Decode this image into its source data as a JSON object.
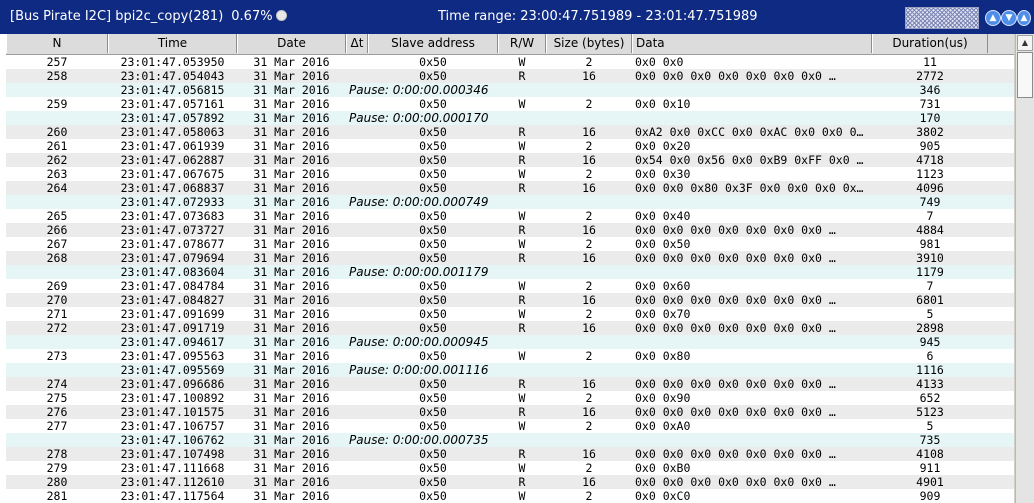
{
  "window": {
    "title": "[Bus Pirate I2C] bpi2c_copy(281)",
    "percent": "0.67%",
    "time_range": "Time range: 23:00:47.751989 - 23:01:47.751989",
    "nav_icons": [
      "up-arrow-icon",
      "down-arrow-icon"
    ]
  },
  "columns": [
    {
      "key": "n",
      "label": "N"
    },
    {
      "key": "time",
      "label": "Time"
    },
    {
      "key": "date",
      "label": "Date"
    },
    {
      "key": "dt",
      "label": "Δt"
    },
    {
      "key": "slave",
      "label": "Slave address"
    },
    {
      "key": "rw",
      "label": "R/W"
    },
    {
      "key": "size",
      "label": "Size (bytes)"
    },
    {
      "key": "data",
      "label": "Data"
    },
    {
      "key": "duration",
      "label": "Duration(us)"
    }
  ],
  "rows": [
    {
      "type": "tx",
      "n": "257",
      "time": "23:01:47.053950",
      "date": "31 Mar 2016",
      "slave": "0x50",
      "rw": "W",
      "size": "2",
      "data": "0x0 0x0",
      "duration": "11"
    },
    {
      "type": "tx",
      "n": "258",
      "time": "23:01:47.054043",
      "date": "31 Mar 2016",
      "slave": "0x50",
      "rw": "R",
      "size": "16",
      "data": "0x0 0x0 0x0 0x0 0x0 0x0 0x0 …",
      "duration": "2772"
    },
    {
      "type": "pause",
      "time": "23:01:47.056815",
      "date": "31 Mar 2016",
      "pause": "Pause: 0:00:00.000346",
      "duration": "346"
    },
    {
      "type": "tx",
      "n": "259",
      "time": "23:01:47.057161",
      "date": "31 Mar 2016",
      "slave": "0x50",
      "rw": "W",
      "size": "2",
      "data": "0x0 0x10",
      "duration": "731"
    },
    {
      "type": "pause",
      "time": "23:01:47.057892",
      "date": "31 Mar 2016",
      "pause": "Pause: 0:00:00.000170",
      "duration": "170"
    },
    {
      "type": "tx",
      "n": "260",
      "time": "23:01:47.058063",
      "date": "31 Mar 2016",
      "slave": "0x50",
      "rw": "R",
      "size": "16",
      "data": "0xA2 0x0 0xCC 0x0 0xAC 0x0 0x0 0…",
      "duration": "3802"
    },
    {
      "type": "tx",
      "n": "261",
      "time": "23:01:47.061939",
      "date": "31 Mar 2016",
      "slave": "0x50",
      "rw": "W",
      "size": "2",
      "data": "0x0 0x20",
      "duration": "905"
    },
    {
      "type": "tx",
      "n": "262",
      "time": "23:01:47.062887",
      "date": "31 Mar 2016",
      "slave": "0x50",
      "rw": "R",
      "size": "16",
      "data": "0x54 0x0 0x56 0x0 0xB9 0xFF 0x0 …",
      "duration": "4718"
    },
    {
      "type": "tx",
      "n": "263",
      "time": "23:01:47.067675",
      "date": "31 Mar 2016",
      "slave": "0x50",
      "rw": "W",
      "size": "2",
      "data": "0x0 0x30",
      "duration": "1123"
    },
    {
      "type": "tx",
      "n": "264",
      "time": "23:01:47.068837",
      "date": "31 Mar 2016",
      "slave": "0x50",
      "rw": "R",
      "size": "16",
      "data": "0x0 0x0 0x80 0x3F 0x0 0x0 0x0 0x…",
      "duration": "4096"
    },
    {
      "type": "pause",
      "time": "23:01:47.072933",
      "date": "31 Mar 2016",
      "pause": "Pause: 0:00:00.000749",
      "duration": "749"
    },
    {
      "type": "tx",
      "n": "265",
      "time": "23:01:47.073683",
      "date": "31 Mar 2016",
      "slave": "0x50",
      "rw": "W",
      "size": "2",
      "data": "0x0 0x40",
      "duration": "7"
    },
    {
      "type": "tx",
      "n": "266",
      "time": "23:01:47.073727",
      "date": "31 Mar 2016",
      "slave": "0x50",
      "rw": "R",
      "size": "16",
      "data": "0x0 0x0 0x0 0x0 0x0 0x0 0x0 …",
      "duration": "4884"
    },
    {
      "type": "tx",
      "n": "267",
      "time": "23:01:47.078677",
      "date": "31 Mar 2016",
      "slave": "0x50",
      "rw": "W",
      "size": "2",
      "data": "0x0 0x50",
      "duration": "981"
    },
    {
      "type": "tx",
      "n": "268",
      "time": "23:01:47.079694",
      "date": "31 Mar 2016",
      "slave": "0x50",
      "rw": "R",
      "size": "16",
      "data": "0x0 0x0 0x0 0x0 0x0 0x0 0x0 …",
      "duration": "3910"
    },
    {
      "type": "pause",
      "time": "23:01:47.083604",
      "date": "31 Mar 2016",
      "pause": "Pause: 0:00:00.001179",
      "duration": "1179"
    },
    {
      "type": "tx",
      "n": "269",
      "time": "23:01:47.084784",
      "date": "31 Mar 2016",
      "slave": "0x50",
      "rw": "W",
      "size": "2",
      "data": "0x0 0x60",
      "duration": "7"
    },
    {
      "type": "tx",
      "n": "270",
      "time": "23:01:47.084827",
      "date": "31 Mar 2016",
      "slave": "0x50",
      "rw": "R",
      "size": "16",
      "data": "0x0 0x0 0x0 0x0 0x0 0x0 0x0 …",
      "duration": "6801"
    },
    {
      "type": "tx",
      "n": "271",
      "time": "23:01:47.091699",
      "date": "31 Mar 2016",
      "slave": "0x50",
      "rw": "W",
      "size": "2",
      "data": "0x0 0x70",
      "duration": "5"
    },
    {
      "type": "tx",
      "n": "272",
      "time": "23:01:47.091719",
      "date": "31 Mar 2016",
      "slave": "0x50",
      "rw": "R",
      "size": "16",
      "data": "0x0 0x0 0x0 0x0 0x0 0x0 0x0 …",
      "duration": "2898"
    },
    {
      "type": "pause",
      "time": "23:01:47.094617",
      "date": "31 Mar 2016",
      "pause": "Pause: 0:00:00.000945",
      "duration": "945"
    },
    {
      "type": "tx",
      "n": "273",
      "time": "23:01:47.095563",
      "date": "31 Mar 2016",
      "slave": "0x50",
      "rw": "W",
      "size": "2",
      "data": "0x0 0x80",
      "duration": "6"
    },
    {
      "type": "pause",
      "time": "23:01:47.095569",
      "date": "31 Mar 2016",
      "pause": "Pause: 0:00:00.001116",
      "duration": "1116"
    },
    {
      "type": "tx",
      "n": "274",
      "time": "23:01:47.096686",
      "date": "31 Mar 2016",
      "slave": "0x50",
      "rw": "R",
      "size": "16",
      "data": "0x0 0x0 0x0 0x0 0x0 0x0 0x0 …",
      "duration": "4133"
    },
    {
      "type": "tx",
      "n": "275",
      "time": "23:01:47.100892",
      "date": "31 Mar 2016",
      "slave": "0x50",
      "rw": "W",
      "size": "2",
      "data": "0x0 0x90",
      "duration": "652"
    },
    {
      "type": "tx",
      "n": "276",
      "time": "23:01:47.101575",
      "date": "31 Mar 2016",
      "slave": "0x50",
      "rw": "R",
      "size": "16",
      "data": "0x0 0x0 0x0 0x0 0x0 0x0 0x0 …",
      "duration": "5123"
    },
    {
      "type": "tx",
      "n": "277",
      "time": "23:01:47.106757",
      "date": "31 Mar 2016",
      "slave": "0x50",
      "rw": "W",
      "size": "2",
      "data": "0x0 0xA0",
      "duration": "5"
    },
    {
      "type": "pause",
      "time": "23:01:47.106762",
      "date": "31 Mar 2016",
      "pause": "Pause: 0:00:00.000735",
      "duration": "735"
    },
    {
      "type": "tx",
      "n": "278",
      "time": "23:01:47.107498",
      "date": "31 Mar 2016",
      "slave": "0x50",
      "rw": "R",
      "size": "16",
      "data": "0x0 0x0 0x0 0x0 0x0 0x0 0x0 …",
      "duration": "4108"
    },
    {
      "type": "tx",
      "n": "279",
      "time": "23:01:47.111668",
      "date": "31 Mar 2016",
      "slave": "0x50",
      "rw": "W",
      "size": "2",
      "data": "0x0 0xB0",
      "duration": "911"
    },
    {
      "type": "tx",
      "n": "280",
      "time": "23:01:47.112610",
      "date": "31 Mar 2016",
      "slave": "0x50",
      "rw": "R",
      "size": "16",
      "data": "0x0 0x0 0x0 0x0 0x0 0x0 0x0 …",
      "duration": "4901"
    },
    {
      "type": "tx",
      "n": "281",
      "time": "23:01:47.117564",
      "date": "31 Mar 2016",
      "slave": "0x50",
      "rw": "W",
      "size": "2",
      "data": "0x0 0xC0",
      "duration": "909"
    }
  ]
}
